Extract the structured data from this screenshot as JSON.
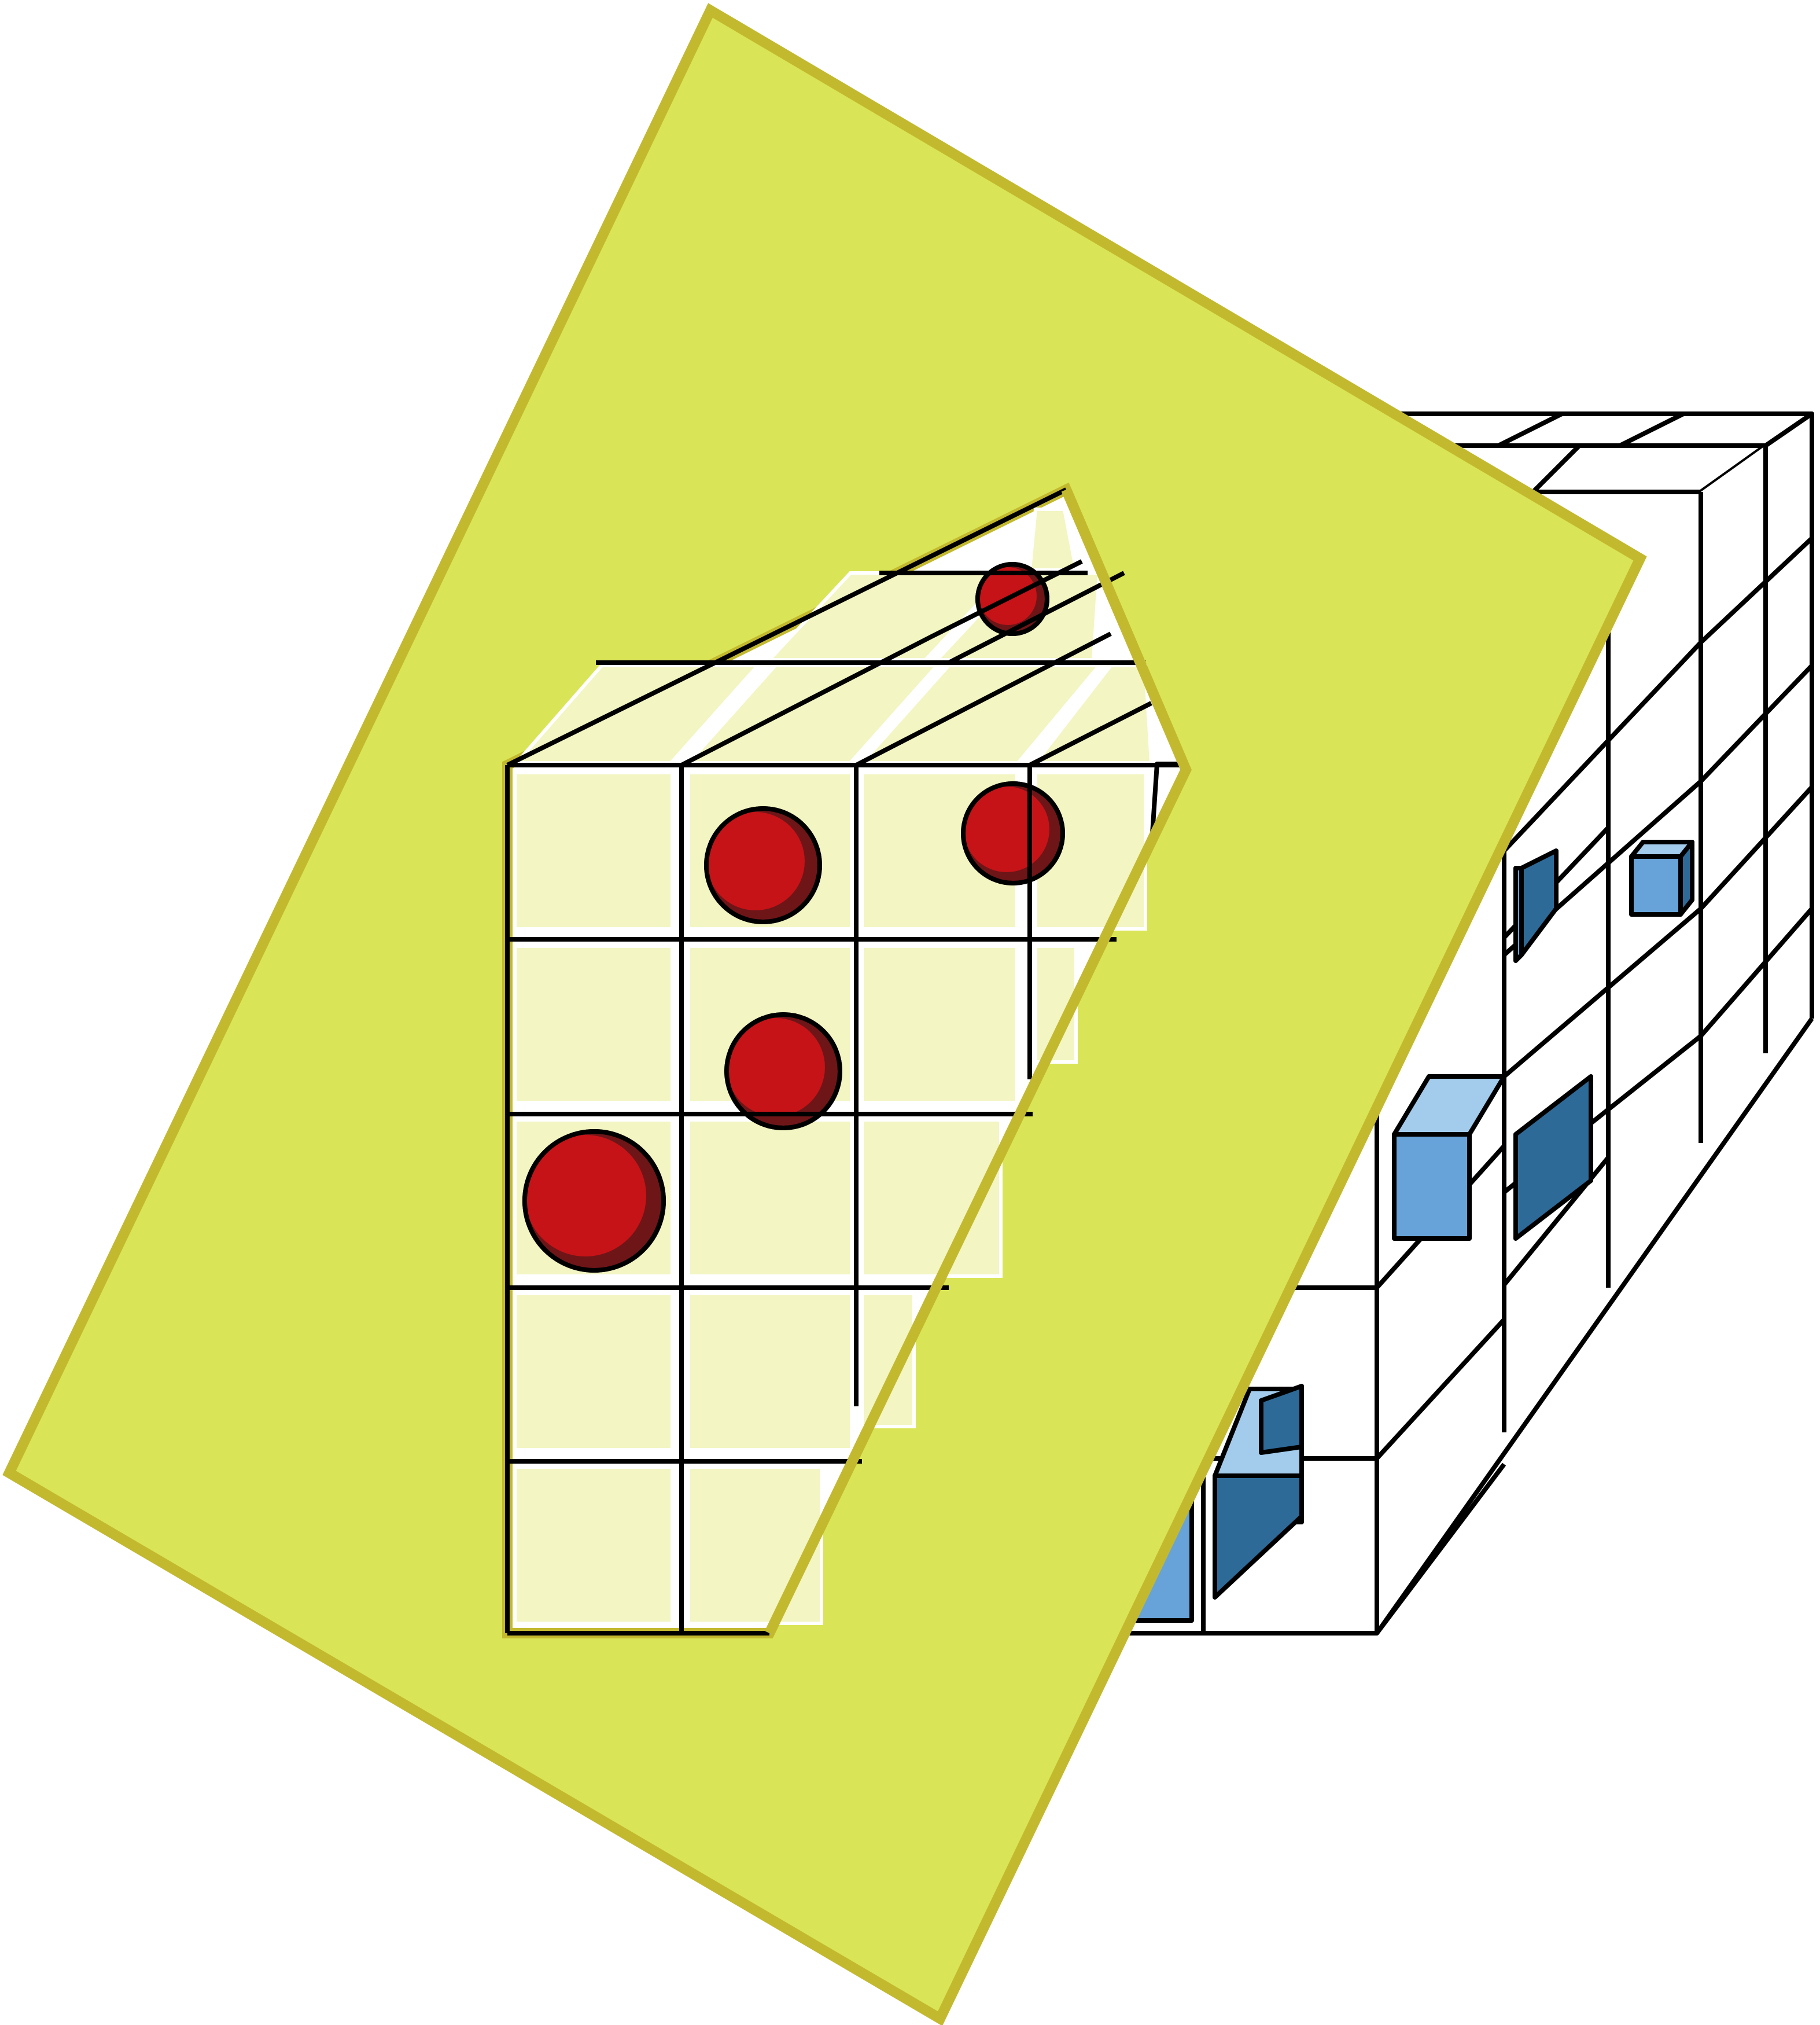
{
  "diagram": {
    "description_elements": {
      "sheet": "plane-sheet",
      "grid": "voxel-grid",
      "selected": "sphere-voxels",
      "unselected": "cube-voxels"
    },
    "grid": {
      "columns": 5,
      "rows": 5,
      "depth": 5
    },
    "sphere_count": 6,
    "cube_count": 5,
    "colors": {
      "sheet_fill": "#d9e556",
      "sheet_border": "#c3b92f",
      "slice_cell_fill": "#f3f5c2",
      "sphere_red": "#c61317",
      "sphere_shadow": "#6e1518",
      "cube_front": "#67a3d8",
      "cube_top": "#a2cbec",
      "cube_side": "#2e6a98",
      "grid_line": "#000000"
    }
  }
}
